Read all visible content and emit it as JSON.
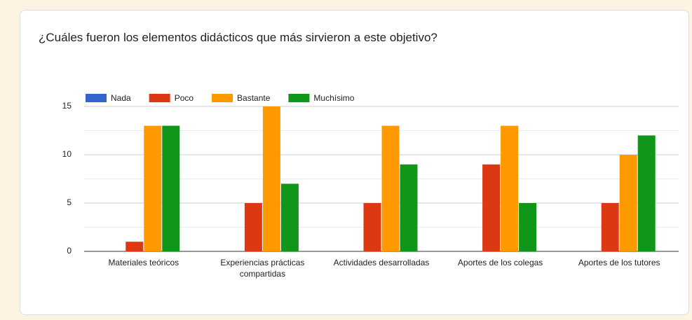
{
  "chart_data": {
    "type": "bar",
    "title": "¿Cuáles fueron los elementos didácticos que más sirvieron a este objetivo?",
    "categories": [
      "Materiales teóricos",
      "Experiencias prácticas compartidas",
      "Actividades desarrolladas",
      "Aportes de los colegas",
      "Aportes de los tutores"
    ],
    "series": [
      {
        "name": "Nada",
        "color": "#3366cc",
        "values": [
          0,
          0,
          0,
          0,
          0
        ]
      },
      {
        "name": "Poco",
        "color": "#dc3912",
        "values": [
          1,
          5,
          5,
          9,
          5
        ]
      },
      {
        "name": "Bastante",
        "color": "#ff9900",
        "values": [
          13,
          15,
          13,
          13,
          10
        ]
      },
      {
        "name": "Muchísimo",
        "color": "#109618",
        "values": [
          13,
          7,
          9,
          5,
          12
        ]
      }
    ],
    "ylim": [
      0,
      15
    ],
    "yticks": [
      0,
      5,
      10,
      15
    ],
    "minor_yticks": [
      2.5,
      7.5,
      12.5
    ],
    "grid": true,
    "legend": "top"
  }
}
